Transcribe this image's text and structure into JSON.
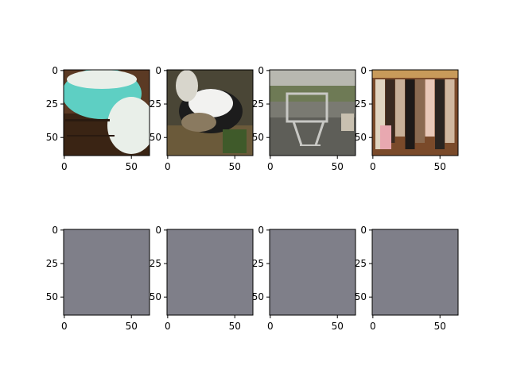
{
  "figure": {
    "rows": 2,
    "cols": 4,
    "image_size": [
      64,
      64
    ],
    "x_ticks": [
      "0",
      "50"
    ],
    "y_ticks": [
      "0",
      "25",
      "50"
    ],
    "x_tick_values": [
      0,
      50
    ],
    "y_tick_values": [
      0,
      25,
      50
    ],
    "spine_color": "#000000",
    "blank_fill_color": "#7f7f89",
    "panels": [
      {
        "id": "r0c0",
        "content": "photo",
        "subject": "turquoise patterned glass mixing bowls on wooden table",
        "palette": {
          "bg": "#5b3a24",
          "main": "#5ecfc3",
          "accent": "#e9efe9",
          "dark": "#3a2414"
        }
      },
      {
        "id": "r0c1",
        "content": "photo",
        "subject": "black and white animal (dog) lying among plants and leaves",
        "palette": {
          "bg": "#4a4636",
          "main": "#f2f2f0",
          "accent": "#1c1c1c",
          "dark": "#6b5a3a"
        }
      },
      {
        "id": "r0c2",
        "content": "photo",
        "subject": "abandoned shopping cart on gravel near water",
        "palette": {
          "bg": "#7a7a72",
          "main": "#c8c8c4",
          "accent": "#6e7a55",
          "dark": "#3a3a34"
        }
      },
      {
        "id": "r0c3",
        "content": "photo",
        "subject": "clothes and jackets hanging on a rack",
        "palette": {
          "bg": "#7a4a2a",
          "main": "#d9c7b0",
          "accent": "#1e1a18",
          "dark": "#b88a6a"
        }
      },
      {
        "id": "r1c0",
        "content": "blank"
      },
      {
        "id": "r1c1",
        "content": "blank"
      },
      {
        "id": "r1c2",
        "content": "blank"
      },
      {
        "id": "r1c3",
        "content": "blank"
      }
    ]
  }
}
